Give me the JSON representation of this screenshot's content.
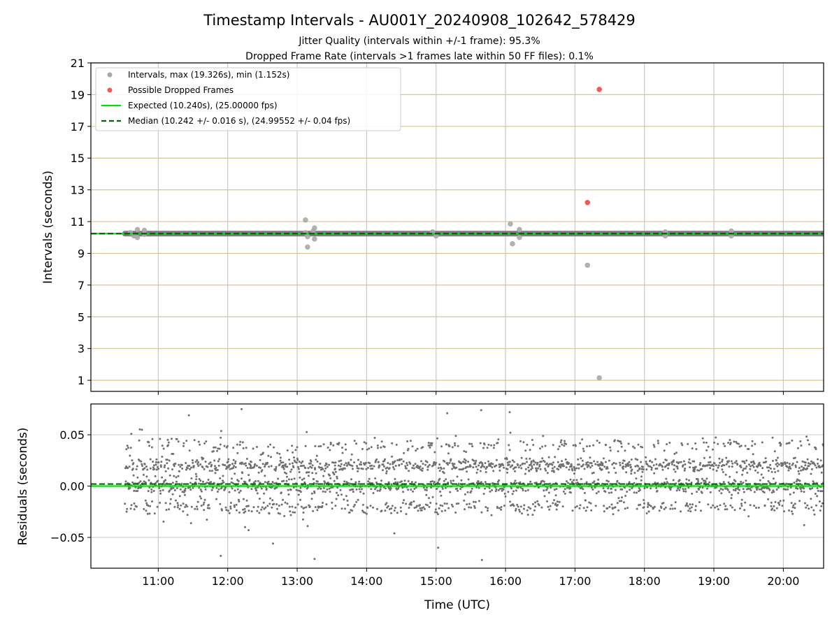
{
  "chart_data": [
    {
      "type": "scatter",
      "title": "Timestamp Intervals - AU001Y_20240908_102642_578429",
      "subtitle_lines": [
        "Jitter Quality (intervals within +/-1 frame): 95.3%",
        "Dropped Frame Rate (intervals >1 frames late within 50 FF files): 0.1%"
      ],
      "xlabel": "",
      "ylabel": "Intervals (seconds)",
      "xlim": [
        10.03,
        20.58
      ],
      "ylim": [
        0.3,
        21
      ],
      "yticks": [
        1,
        3,
        5,
        7,
        9,
        11,
        13,
        15,
        17,
        19,
        21
      ],
      "xticks": [
        11,
        12,
        13,
        14,
        15,
        16,
        17,
        18,
        19,
        20
      ],
      "xtick_labels": [
        "11:00",
        "12:00",
        "13:00",
        "14:00",
        "15:00",
        "16:00",
        "17:00",
        "18:00",
        "19:00",
        "20:00"
      ],
      "grid": {
        "vertical": true,
        "horizontal": true,
        "horizontal_color": "#d9c58f"
      },
      "legend": {
        "placement": "top-left",
        "entries": [
          {
            "label": "Intervals, max (19.326s), min (1.152s)",
            "marker": "dot",
            "color": "#a8a8a8"
          },
          {
            "label": "Possible Dropped Frames",
            "marker": "dot",
            "color": "#f25a5a"
          },
          {
            "label": "Expected (10.240s), (25.00000 fps)",
            "marker": "line",
            "color": "#00e000"
          },
          {
            "label": "Median (10.242 +/- 0.016 s), (24.99552 +/- 0.04 fps)",
            "marker": "dashed",
            "color": "#006400"
          }
        ]
      },
      "series": [
        {
          "name": "Intervals, max (19.326s), min (1.152s)",
          "color": "#a8a8a8",
          "band": {
            "x_start": 10.52,
            "x_end": 20.58,
            "y": 10.24
          },
          "x": [
            10.6,
            10.65,
            10.7,
            10.7,
            10.8,
            10.8,
            13.12,
            13.12,
            13.15,
            13.15,
            13.23,
            13.25,
            13.25,
            14.95,
            15.0,
            16.07,
            16.1,
            16.2,
            16.2,
            17.18,
            17.35,
            18.3,
            18.3,
            19.25,
            19.25
          ],
          "y": [
            10.3,
            10.1,
            10.0,
            10.5,
            10.2,
            10.45,
            11.1,
            10.3,
            9.4,
            10.05,
            10.4,
            10.6,
            9.9,
            10.35,
            10.1,
            10.85,
            9.6,
            10.5,
            10.0,
            8.25,
            1.15,
            10.35,
            10.1,
            10.4,
            10.1
          ]
        },
        {
          "name": "Possible Dropped Frames",
          "color": "#f25a5a",
          "x": [
            17.18,
            17.35
          ],
          "y": [
            12.2,
            19.33
          ]
        }
      ],
      "reference_lines": [
        {
          "name": "Expected (10.240s), (25.00000 fps)",
          "y": 10.24,
          "color": "#00e000",
          "style": "solid"
        },
        {
          "name": "Median (10.242 +/- 0.016 s), (24.99552 +/- 0.04 fps)",
          "y": 10.242,
          "color": "#006400",
          "style": "dashed"
        }
      ]
    },
    {
      "type": "scatter",
      "title": "",
      "xlabel": "Time (UTC)",
      "ylabel": "Residuals (seconds)",
      "xlim": [
        10.03,
        20.58
      ],
      "ylim": [
        -0.08,
        0.08
      ],
      "yticks": [
        -0.05,
        0.0,
        0.05
      ],
      "ytick_labels": [
        "−0.05",
        "0.00",
        "0.05"
      ],
      "xticks": [
        11,
        12,
        13,
        14,
        15,
        16,
        17,
        18,
        19,
        20
      ],
      "xtick_labels": [
        "11:00",
        "12:00",
        "13:00",
        "14:00",
        "15:00",
        "16:00",
        "17:00",
        "18:00",
        "19:00",
        "20:00"
      ],
      "grid": {
        "vertical": true,
        "horizontal": true,
        "horizontal_color": "#cccccc"
      },
      "series": [
        {
          "name": "",
          "color": "#707070",
          "distribution": {
            "x_start": 10.52,
            "x_end": 20.58,
            "levels": [
              -0.02,
              0.0,
              0.02,
              0.04
            ],
            "level_weights": [
              0.16,
              0.38,
              0.36,
              0.1
            ],
            "spread": 0.0035,
            "early_scatter_until": 13.7,
            "early_scatter_spread": 0.012,
            "count": 2600
          },
          "outliers_x": [
            12.2,
            11.9,
            12.25,
            12.3,
            13.25,
            14.4,
            15.03,
            15.16,
            15.65,
            15.66,
            16.06,
            16.07,
            20.3
          ],
          "outliers_y": [
            0.075,
            -0.068,
            -0.04,
            -0.043,
            -0.071,
            -0.046,
            -0.06,
            0.071,
            0.074,
            -0.072,
            0.072,
            0.052,
            -0.038
          ]
        }
      ],
      "reference_lines": [
        {
          "name": "Expected",
          "y": 0.0,
          "color": "#00e000",
          "style": "solid"
        },
        {
          "name": "Median",
          "y": 0.002,
          "color": "#006400",
          "style": "dashed"
        }
      ]
    }
  ]
}
